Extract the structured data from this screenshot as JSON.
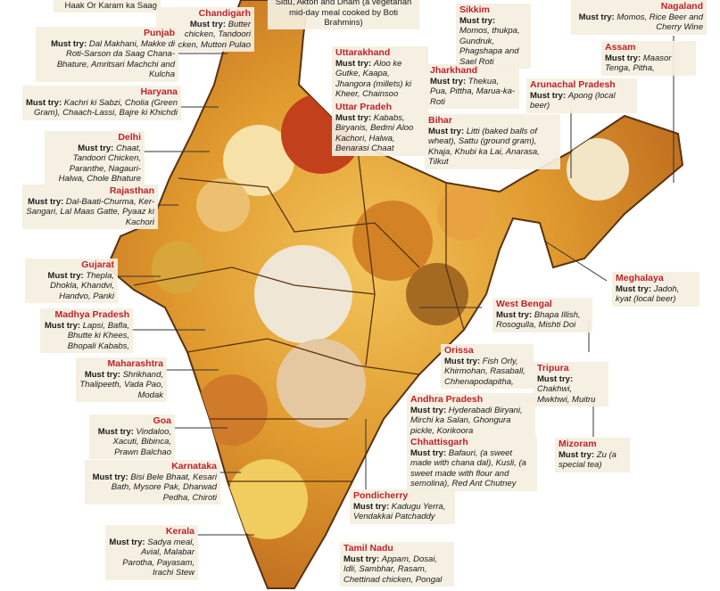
{
  "fragments": [
    "Haak Or Karam ka Saag",
    "Sidu, Aktori and Dham (a vegetarian mid-day meal cooked by Boti Brahmins)"
  ],
  "regions": [
    {
      "name": "Chandigarh",
      "label": "Must try:",
      "dishes": "Butter chicken, Tandoori Chicken, Mutton Pulao"
    },
    {
      "name": "Punjab",
      "label": "Must try:",
      "dishes": "Dal Makhani, Makke di Roti-Sarson da Saag Chana-Bhature, Amritsari Machchi and Kulcha"
    },
    {
      "name": "Haryana",
      "label": "Must try:",
      "dishes": "Kachri ki Sabzi, Cholia (Green Gram), Chaach-Lassi, Bajre ki Khichdi"
    },
    {
      "name": "Delhi",
      "label": "Must try:",
      "dishes": "Chaat, Tandoori Chicken, Paranthe, Nagauri-Halwa, Chole Bhature"
    },
    {
      "name": "Rajasthan",
      "label": "Must try:",
      "dishes": "Dal-Baati-Churma, Ker-Sangari, Lal Maas Gatte, Pyaaz ki Kachori"
    },
    {
      "name": "Gujarat",
      "label": "Must try:",
      "dishes": "Thepla, Dhokla, Khandvi, Handvo, Panki"
    },
    {
      "name": "Madhya Pradesh",
      "label": "Must try:",
      "dishes": "Lapsi, Bafla, Bhutte ki Khees, Bhopali Kababs,"
    },
    {
      "name": "Maharashtra",
      "label": "Must try:",
      "dishes": "Shrikhand, Thalipeeth, Vada Pao, Modak"
    },
    {
      "name": "Goa",
      "label": "Must try:",
      "dishes": "Vindaloo, Xacuti, Bibinca, Prawn Balchao"
    },
    {
      "name": "Karnataka",
      "label": "Must try:",
      "dishes": "Bisi Bele Bhaat, Kesari Bath, Mysore Pak, Dharwad Pedha, Chiroti"
    },
    {
      "name": "Kerala",
      "label": "Must try:",
      "dishes": "Sadya meal, Avial, Malabar Parotha, Payasam, Irachi Stew"
    },
    {
      "name": "Uttarakhand",
      "label": "Must try:",
      "dishes": "Aloo ke Gutke, Kaapa, Jhangora (millets) ki Kheer, Chainsoo"
    },
    {
      "name": "Uttar Pradeh",
      "label": "Must try:",
      "dishes": "Kababs, Biryanis, Bedmi Aloo Kachori, Halwa, Benarasi Chaat"
    },
    {
      "name": "Sikkim",
      "label": "Must try:",
      "dishes": "Momos, thukpa, Gundruk, Phagshapa and Sael Roti"
    },
    {
      "name": "Jharkhand",
      "label": "Must try:",
      "dishes": "Thekua, Pua, Pittha, Marua-ka-Roti"
    },
    {
      "name": "Bihar",
      "label": "Must try:",
      "dishes": "Litti (baked balls of wheat), Sattu (ground gram), Khaja, Khubi ka Lai, Anarasa, Tilkut"
    },
    {
      "name": "Nagaland",
      "label": "Must try:",
      "dishes": "Momos, Rice Beer and Cherry Wine"
    },
    {
      "name": "Assam",
      "label": "Must try:",
      "dishes": "Maasor Tenga, Pitha,"
    },
    {
      "name": "Arunachal Pradesh",
      "label": "Must try:",
      "dishes": "Apong (local beer)"
    },
    {
      "name": "Meghalaya",
      "label": "Must try:",
      "dishes": "Jadoh, kyat (local beer)"
    },
    {
      "name": "West Bengal",
      "label": "Must try:",
      "dishes": "Bhapa Illish, Rosogulla, Mishti Doi"
    },
    {
      "name": "Orissa",
      "label": "Must try:",
      "dishes": "Fish Orly, Khirmohan, Rasaball, Chhenapodapitha,"
    },
    {
      "name": "Tripura",
      "label": "Must try:",
      "dishes": "Chakhwi, Mwkhwi, Muitru"
    },
    {
      "name": "Andhra Pradesh",
      "label": "Must try:",
      "dishes": "Hyderabadi Biryani, Mirchi ka Salan, Ghongura pickle, Korikoora"
    },
    {
      "name": "Chhattisgarh",
      "label": "Must try:",
      "dishes": "Bafauri, (a sweet made with chana dal), Kusli, (a sweet made with flour and semolina), Red Ant Chutney"
    },
    {
      "name": "Mizoram",
      "label": "Must try:",
      "dishes": "Zu (a special tea)"
    },
    {
      "name": "Pondicherry",
      "label": "Must try:",
      "dishes": "Kadugu Yerra, Vendakkai Patchaddy"
    },
    {
      "name": "Tamil Nadu",
      "label": "Must try:",
      "dishes": "Appam, Dosai, Idli, Sambhar, Rasam, Chettinad chicken, Pongal"
    }
  ]
}
